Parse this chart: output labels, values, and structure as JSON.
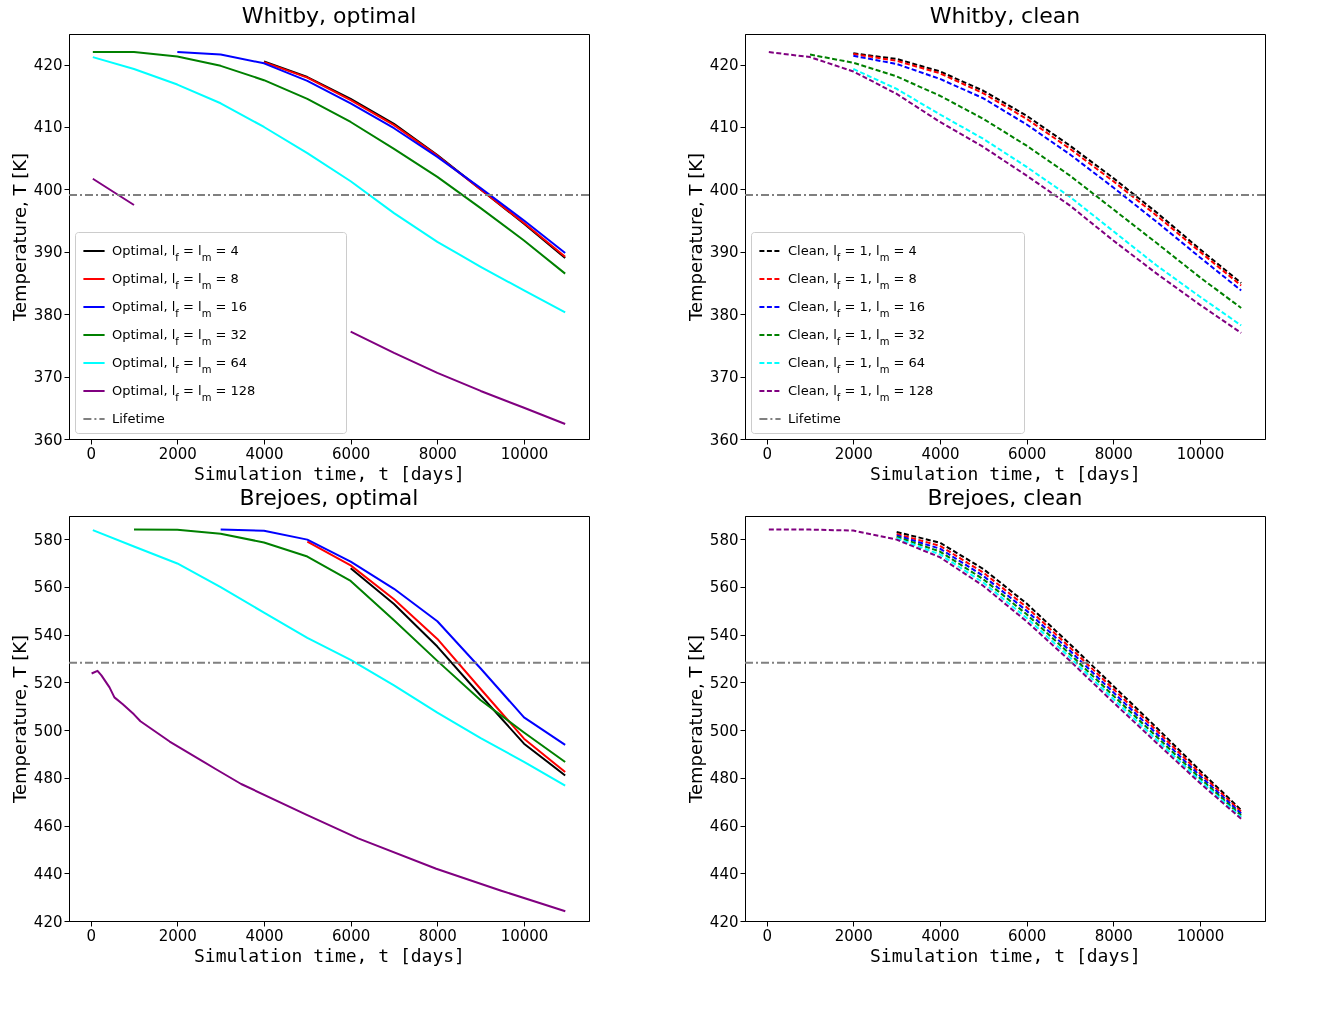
{
  "chart_data": [
    {
      "type": "line",
      "title": "Whitby, optimal",
      "xlabel": "Simulation time, t [days]",
      "ylabel": "Temperature, T [K]",
      "xlim": [
        -500,
        11500
      ],
      "ylim": [
        360,
        424.9
      ],
      "xticks": [
        0,
        2000,
        4000,
        6000,
        8000,
        10000
      ],
      "yticks": [
        360,
        370,
        380,
        390,
        400,
        410,
        420
      ],
      "grid": false,
      "legend": "bottom left",
      "line_style": "solid",
      "x": [
        50,
        1000,
        2000,
        3000,
        4000,
        5000,
        6000,
        7000,
        8000,
        9000,
        10000,
        10950
      ],
      "series": [
        {
          "name": "Optimal, l$_{f}$ = l$_{m}$ = 4",
          "color": "#000000",
          "values": [
            null,
            null,
            null,
            null,
            420.5,
            418,
            414.5,
            410.5,
            405.5,
            400,
            394.5,
            389
          ]
        },
        {
          "name": "Optimal, l$_{f}$ = l$_{m}$ = 8",
          "color": "#ff0000",
          "values": [
            null,
            null,
            null,
            null,
            420.4,
            417.9,
            414.3,
            410.3,
            405.4,
            400,
            394.6,
            389.2
          ]
        },
        {
          "name": "Optimal, l$_{f}$ = l$_{m}$ = 16",
          "color": "#0000ff",
          "values": [
            null,
            null,
            422,
            421.6,
            420.2,
            417.4,
            413.8,
            409.8,
            405.2,
            400.2,
            395,
            389.8
          ]
        },
        {
          "name": "Optimal, l$_{f}$ = l$_{m}$ = 32",
          "color": "#008000",
          "values": [
            422,
            422,
            421.3,
            419.8,
            417.5,
            414.5,
            410.8,
            406.5,
            402,
            397,
            391.8,
            386.5
          ]
        },
        {
          "name": "Optimal, l$_{f}$ = l$_{m}$ = 64",
          "color": "#00ffff",
          "values": [
            421.2,
            419.3,
            416.8,
            413.8,
            410,
            405.8,
            401.3,
            396.2,
            391.6,
            387.6,
            383.8,
            380.3
          ]
        },
        {
          "name": "Optimal, l$_{f}$ = l$_{m}$ = 128",
          "color": "#800080",
          "values": [
            401.7,
            397.5,
            null,
            null,
            null,
            null,
            377.2,
            373.8,
            370.6,
            367.7,
            365,
            362.4
          ]
        }
      ],
      "ref_lines": [
        {
          "axis": "y",
          "value": 399.1,
          "label": "Lifetime",
          "color": "#808080"
        }
      ]
    },
    {
      "type": "line",
      "title": "Whitby, clean",
      "xlabel": "Simulation time, t [days]",
      "ylabel": "Temperature, T [K]",
      "xlim": [
        -500,
        11500
      ],
      "ylim": [
        360,
        424.9
      ],
      "xticks": [
        0,
        2000,
        4000,
        6000,
        8000,
        10000
      ],
      "yticks": [
        360,
        370,
        380,
        390,
        400,
        410,
        420
      ],
      "grid": false,
      "legend": "bottom left",
      "line_style": "dashed",
      "x": [
        50,
        1000,
        2000,
        3000,
        4000,
        5000,
        6000,
        7000,
        8000,
        9000,
        10000,
        10950
      ],
      "series": [
        {
          "name": "Clean, l$_{f}$ = 1, l$_{m}$ = 4",
          "color": "#000000",
          "values": [
            null,
            null,
            421.8,
            420.9,
            418.9,
            415.8,
            411.8,
            407,
            401.8,
            396.3,
            390.4,
            385
          ]
        },
        {
          "name": "Clean, l$_{f}$ = 1, l$_{m}$ = 8",
          "color": "#ff0000",
          "values": [
            null,
            null,
            421.7,
            420.6,
            418.6,
            415.4,
            411.3,
            406.5,
            401.3,
            395.8,
            390,
            384.6
          ]
        },
        {
          "name": "Clean, l$_{f}$ = 1, l$_{m}$ = 16",
          "color": "#0000ff",
          "values": [
            null,
            null,
            421.4,
            420.1,
            417.7,
            414.6,
            410.4,
            405.6,
            400.3,
            394.8,
            389.1,
            383.8
          ]
        },
        {
          "name": "Clean, l$_{f}$ = 1, l$_{m}$ = 32",
          "color": "#008000",
          "values": [
            null,
            421.6,
            420.3,
            418.1,
            415,
            411.3,
            407,
            402.2,
            396.8,
            391.4,
            385.9,
            381
          ]
        },
        {
          "name": "Clean, l$_{f}$ = 1, l$_{m}$ = 64",
          "color": "#00ffff",
          "values": [
            null,
            null,
            419.3,
            416.1,
            412,
            408.1,
            403.6,
            398.8,
            393.3,
            387.8,
            382.8,
            378.2
          ]
        },
        {
          "name": "Clean, l$_{f}$ = 1, l$_{m}$ = 128",
          "color": "#800080",
          "values": [
            422,
            421.2,
            418.9,
            415.3,
            410.8,
            406.8,
            402.2,
            397.4,
            391.8,
            386.5,
            381.5,
            377
          ]
        }
      ],
      "ref_lines": [
        {
          "axis": "y",
          "value": 399.1,
          "label": "Lifetime",
          "color": "#808080"
        }
      ]
    },
    {
      "type": "line",
      "title": "Brejoes, optimal",
      "xlabel": "Simulation time, t [days]",
      "ylabel": "Temperature, T [K]",
      "xlim": [
        -500,
        11500
      ],
      "ylim": [
        420,
        589.7
      ],
      "xticks": [
        0,
        2000,
        4000,
        6000,
        8000,
        10000
      ],
      "yticks": [
        420,
        440,
        460,
        480,
        500,
        520,
        540,
        560,
        580
      ],
      "grid": false,
      "line_style": "solid",
      "x": [
        50,
        1000,
        2000,
        3000,
        4000,
        5000,
        6000,
        7000,
        8000,
        9000,
        10000,
        10950
      ],
      "series": [
        {
          "color": "#000000",
          "values": [
            null,
            null,
            null,
            null,
            null,
            null,
            567.8,
            552.8,
            535,
            514.5,
            494.3,
            481
          ]
        },
        {
          "color": "#ff0000",
          "values": [
            null,
            null,
            null,
            null,
            null,
            579,
            569,
            554.8,
            538.2,
            517.2,
            496.4,
            482.4
          ]
        },
        {
          "color": "#0000ff",
          "values": [
            null,
            null,
            null,
            584,
            583.5,
            579.8,
            570.6,
            559.2,
            545.6,
            525.8,
            505.3,
            493.8
          ]
        },
        {
          "color": "#008000",
          "values": [
            null,
            584,
            583.9,
            582.3,
            578.6,
            572.7,
            562.5,
            546,
            529,
            512.5,
            499,
            486.6
          ]
        },
        {
          "color": "#00ffff",
          "values": [
            583.8,
            576.9,
            569.8,
            559.9,
            549.2,
            538.6,
            529.4,
            518.7,
            507.3,
            496.6,
            486.7,
            476.7
          ]
        },
        {
          "color": "#800080",
          "x": [
            22,
            158,
            248,
            435,
            548,
            735,
            998,
            1148,
            1823,
            2873,
            3473,
            4974,
            6174,
            7974,
            9475,
            10953
          ],
          "values": [
            523.7,
            524.8,
            522.9,
            517.9,
            513.7,
            510.9,
            506.6,
            503.7,
            495.2,
            483.8,
            477.4,
            464.6,
            454.6,
            441.9,
            432.7,
            424.1
          ]
        }
      ],
      "ref_lines": [
        {
          "axis": "y",
          "value": 528.2,
          "color": "#808080"
        }
      ]
    },
    {
      "type": "line",
      "title": "Brejoes, clean",
      "xlabel": "Simulation time, t [days]",
      "ylabel": "Temperature, T [K]",
      "xlim": [
        -500,
        11500
      ],
      "ylim": [
        420,
        589.7
      ],
      "xticks": [
        0,
        2000,
        4000,
        6000,
        8000,
        10000
      ],
      "yticks": [
        420,
        440,
        460,
        480,
        500,
        520,
        540,
        560,
        580
      ],
      "grid": false,
      "line_style": "dashed",
      "x": [
        50,
        1000,
        2000,
        3000,
        4000,
        5000,
        6000,
        7000,
        8000,
        9000,
        10000,
        10950
      ],
      "series": [
        {
          "color": "#000000",
          "values": [
            null,
            null,
            null,
            583,
            578.5,
            567.5,
            553,
            536,
            518.5,
            501,
            483,
            466.5
          ]
        },
        {
          "color": "#ff0000",
          "values": [
            null,
            null,
            null,
            582.2,
            577.2,
            566,
            551.5,
            534.6,
            517.2,
            499.8,
            481.9,
            465.8
          ]
        },
        {
          "color": "#0000ff",
          "values": [
            null,
            null,
            null,
            581.6,
            576,
            564.6,
            550,
            533.2,
            515.8,
            498.5,
            480.8,
            465
          ]
        },
        {
          "color": "#008000",
          "values": [
            null,
            null,
            null,
            581,
            574.8,
            563.2,
            548.5,
            531.8,
            514.4,
            497.2,
            479.8,
            464.2
          ]
        },
        {
          "color": "#00ffff",
          "values": [
            null,
            null,
            null,
            580.4,
            573.6,
            561.8,
            547,
            530.4,
            513,
            495.9,
            478.8,
            463.5
          ]
        },
        {
          "color": "#800080",
          "values": [
            584,
            584,
            583.6,
            579.8,
            572.4,
            560.4,
            545.5,
            529,
            511.6,
            494.6,
            477.8,
            462.8
          ]
        }
      ],
      "ref_lines": [
        {
          "axis": "y",
          "value": 528.2,
          "color": "#808080"
        }
      ]
    }
  ]
}
